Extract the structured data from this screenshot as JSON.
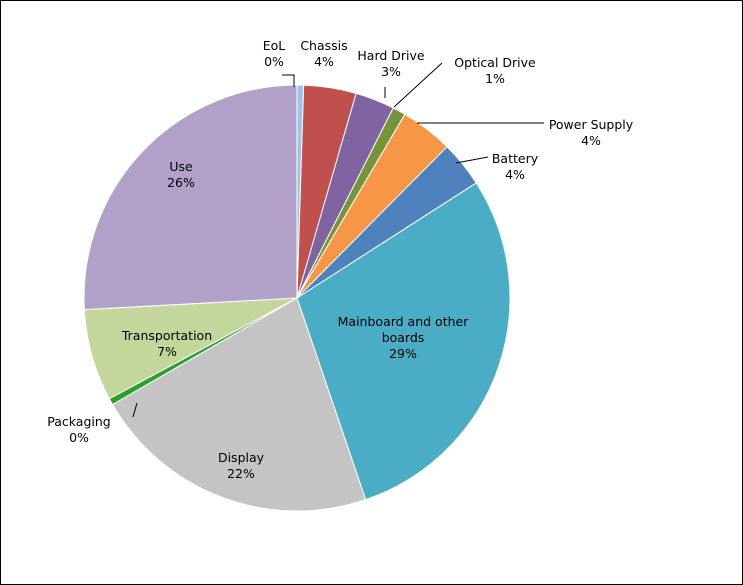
{
  "chart_data": {
    "type": "pie",
    "title": "",
    "legend": "none",
    "slices": [
      {
        "label": "EoL",
        "value": 0.5,
        "pct_label": "0%",
        "color": "#9DC3E6"
      },
      {
        "label": "Chassis",
        "value": 4,
        "pct_label": "4%",
        "color": "#C0504D"
      },
      {
        "label": "Hard Drive",
        "value": 3,
        "pct_label": "3%",
        "color": "#8064A2"
      },
      {
        "label": "Optical Drive",
        "value": 1,
        "pct_label": "1%",
        "color": "#77933C"
      },
      {
        "label": "Power Supply",
        "value": 4,
        "pct_label": "4%",
        "color": "#F79646"
      },
      {
        "label": "Battery",
        "value": 3.5,
        "pct_label": "4%",
        "color": "#4F81BD"
      },
      {
        "label": "Mainboard and other boards",
        "value": 29,
        "pct_label": "29%",
        "color": "#4BACC6"
      },
      {
        "label": "Display",
        "value": 22,
        "pct_label": "22%",
        "color": "#C4C4C4"
      },
      {
        "label": "Packaging",
        "value": 0.5,
        "pct_label": "0%",
        "color": "#2CA02C"
      },
      {
        "label": "Transportation",
        "value": 7,
        "pct_label": "7%",
        "color": "#C3D69B"
      },
      {
        "label": "Use",
        "value": 26,
        "pct_label": "26%",
        "color": "#B1A0C7"
      }
    ]
  }
}
